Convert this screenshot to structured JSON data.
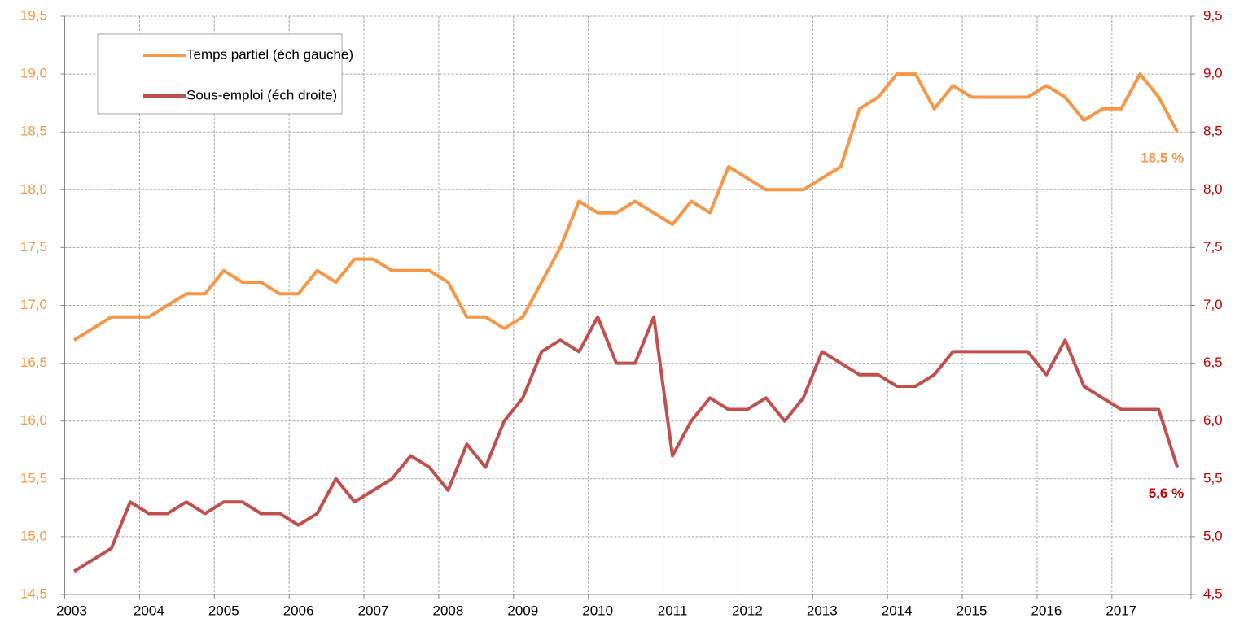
{
  "chart_data": {
    "type": "line",
    "categories": [
      "2003",
      null,
      null,
      null,
      "2004",
      null,
      null,
      null,
      "2005",
      null,
      null,
      null,
      "2006",
      null,
      null,
      null,
      "2007",
      null,
      null,
      null,
      "2008",
      null,
      null,
      null,
      "2009",
      null,
      null,
      null,
      "2010",
      null,
      null,
      null,
      "2011",
      null,
      null,
      null,
      "2012",
      null,
      null,
      null,
      "2013",
      null,
      null,
      null,
      "2014",
      null,
      null,
      null,
      "2015",
      null,
      null,
      null,
      "2016",
      null,
      null,
      null,
      "2017",
      null,
      null,
      null
    ],
    "series": [
      {
        "name": "Temps partiel (éch gauche)",
        "color": "#f79646",
        "axis": "y",
        "values": [
          16.7,
          16.8,
          16.9,
          16.9,
          16.9,
          17.0,
          17.1,
          17.1,
          17.3,
          17.2,
          17.2,
          17.1,
          17.1,
          17.3,
          17.2,
          17.4,
          17.4,
          17.3,
          17.3,
          17.3,
          17.2,
          16.9,
          16.9,
          16.8,
          16.9,
          17.2,
          17.5,
          17.9,
          17.8,
          17.8,
          17.9,
          17.8,
          17.7,
          17.9,
          17.8,
          18.2,
          18.1,
          18.0,
          18.0,
          18.0,
          18.1,
          18.2,
          18.7,
          18.8,
          19.0,
          19.0,
          18.7,
          18.9,
          18.8,
          18.8,
          18.8,
          18.8,
          18.9,
          18.8,
          18.6,
          18.7,
          18.7,
          19.0,
          18.8,
          18.5
        ],
        "value_labels": [
          null,
          null,
          null,
          null,
          null,
          null,
          null,
          null,
          null,
          null,
          null,
          null,
          null,
          null,
          null,
          null,
          null,
          null,
          null,
          null,
          null,
          null,
          null,
          null,
          null,
          null,
          null,
          null,
          null,
          null,
          null,
          null,
          null,
          null,
          null,
          null,
          null,
          null,
          null,
          null,
          null,
          null,
          null,
          null,
          null,
          null,
          null,
          null,
          null,
          null,
          null,
          null,
          null,
          null,
          null,
          null,
          null,
          null,
          null,
          "18,5 %"
        ]
      },
      {
        "name": "Sous-emploi (éch droite)",
        "color": "#c0504d",
        "axis": "y2",
        "values": [
          4.7,
          4.8,
          4.9,
          5.3,
          5.2,
          5.2,
          5.3,
          5.2,
          5.3,
          5.3,
          5.2,
          5.2,
          5.1,
          5.2,
          5.5,
          5.3,
          5.4,
          5.5,
          5.7,
          5.6,
          5.4,
          5.8,
          5.6,
          6.0,
          6.2,
          6.6,
          6.7,
          6.6,
          6.9,
          6.5,
          6.5,
          6.9,
          5.7,
          6.0,
          6.2,
          6.1,
          6.1,
          6.2,
          6.0,
          6.2,
          6.6,
          6.5,
          6.4,
          6.4,
          6.3,
          6.3,
          6.4,
          6.6,
          6.6,
          6.6,
          6.6,
          6.6,
          6.4,
          6.7,
          6.3,
          6.2,
          6.1,
          6.1,
          6.1,
          5.6
        ],
        "value_labels": [
          null,
          null,
          null,
          null,
          null,
          null,
          null,
          null,
          null,
          null,
          null,
          null,
          null,
          null,
          null,
          null,
          null,
          null,
          null,
          null,
          null,
          null,
          null,
          null,
          null,
          null,
          null,
          null,
          null,
          null,
          null,
          null,
          null,
          null,
          null,
          null,
          null,
          null,
          null,
          null,
          null,
          null,
          null,
          null,
          null,
          null,
          null,
          null,
          null,
          null,
          null,
          null,
          null,
          null,
          null,
          null,
          null,
          null,
          null,
          "5,6 %"
        ]
      }
    ],
    "ylim": [
      14.5,
      19.5
    ],
    "yticks": [
      {
        "value": 14.5,
        "label": "14,5"
      },
      {
        "value": 15.0,
        "label": "15,0"
      },
      {
        "value": 15.5,
        "label": "15,5"
      },
      {
        "value": 16.0,
        "label": "16,0"
      },
      {
        "value": 16.5,
        "label": "16,5"
      },
      {
        "value": 17.0,
        "label": "17,0"
      },
      {
        "value": 17.5,
        "label": "17,5"
      },
      {
        "value": 18.0,
        "label": "18,0"
      },
      {
        "value": 18.5,
        "label": "18,5"
      },
      {
        "value": 19.0,
        "label": "19,0"
      },
      {
        "value": 19.5,
        "label": "19,5"
      }
    ],
    "y2lim": [
      4.5,
      9.5
    ],
    "y2ticks": [
      {
        "value": 4.5,
        "label": "4,5"
      },
      {
        "value": 5.0,
        "label": "5,0"
      },
      {
        "value": 5.5,
        "label": "5,5"
      },
      {
        "value": 6.0,
        "label": "6,0"
      },
      {
        "value": 6.5,
        "label": "6,5"
      },
      {
        "value": 7.0,
        "label": "7,0"
      },
      {
        "value": 7.5,
        "label": "7,5"
      },
      {
        "value": 8.0,
        "label": "8,0"
      },
      {
        "value": 8.5,
        "label": "8,5"
      },
      {
        "value": 9.0,
        "label": "9,0"
      },
      {
        "value": 9.5,
        "label": "9,5"
      }
    ],
    "ytick_color": "#f79646",
    "y2tick_color": "#c00000",
    "grid": true,
    "legend": "upper left"
  }
}
